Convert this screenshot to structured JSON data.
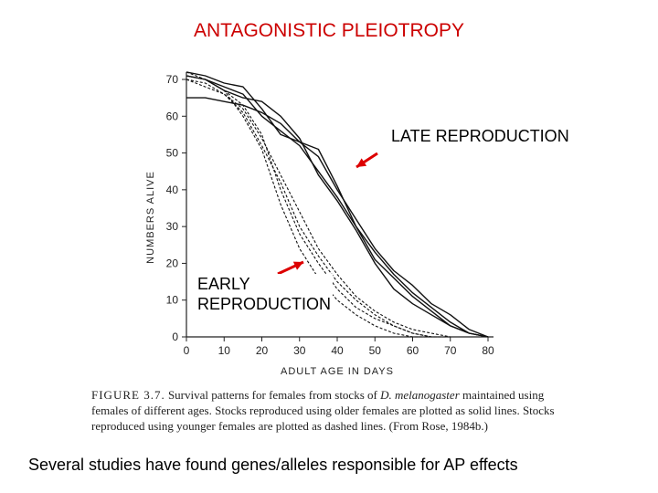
{
  "slide": {
    "title": "ANTAGONISTIC PLEIOTROPY",
    "late_label": "LATE REPRODUCTION",
    "early_label_line1": "EARLY",
    "early_label_line2": "REPRODUCTION",
    "footer": "Several studies have found genes/alleles responsible for AP effects",
    "arrow_color": "#dd0000",
    "title_color": "#cc0000"
  },
  "caption": {
    "figure_number": "FIGURE 3.7.",
    "text_before_species": "Survival patterns for females from stocks of",
    "species": "D. melanogaster",
    "text_after_species": "maintained using females of different ages. Stocks reproduced using older females are plotted as solid lines. Stocks reproduced using younger females are plotted as dashed lines. (From Rose, 1984b.)"
  },
  "chart_data": {
    "type": "line",
    "title": "",
    "xlabel": "ADULT AGE IN DAYS",
    "ylabel": "NUMBERS ALIVE",
    "xlim": [
      0,
      80
    ],
    "ylim": [
      0,
      70
    ],
    "x_ticks": [
      0,
      10,
      20,
      30,
      40,
      50,
      60,
      70,
      80
    ],
    "y_ticks": [
      0,
      10,
      20,
      30,
      40,
      50,
      60,
      70
    ],
    "grid": false,
    "series": [
      {
        "style": "solid",
        "x": [
          0,
          5,
          10,
          15,
          20,
          25,
          30,
          35,
          40,
          45,
          50,
          55,
          60,
          65,
          70,
          75,
          80
        ],
        "y": [
          72,
          71,
          69,
          68,
          62,
          55,
          53,
          49,
          40,
          32,
          24,
          18,
          14,
          9,
          6,
          2,
          0
        ]
      },
      {
        "style": "solid",
        "x": [
          0,
          5,
          10,
          15,
          20,
          25,
          30,
          35,
          40,
          45,
          50,
          55,
          60,
          65,
          70,
          75,
          80
        ],
        "y": [
          65,
          65,
          64,
          63,
          61,
          58,
          53,
          51,
          41,
          30,
          21,
          16,
          11,
          7,
          3,
          1,
          0
        ]
      },
      {
        "style": "solid",
        "x": [
          0,
          5,
          10,
          15,
          20,
          25,
          30,
          35,
          40,
          45,
          50,
          55,
          60,
          65,
          70,
          75,
          80
        ],
        "y": [
          71,
          70,
          68,
          66,
          60,
          56,
          52,
          45,
          38,
          30,
          23,
          17,
          12,
          8,
          4,
          1,
          0
        ]
      },
      {
        "style": "solid",
        "x": [
          0,
          5,
          10,
          15,
          20,
          25,
          30,
          35,
          40,
          45,
          50,
          55,
          60,
          65,
          70,
          75,
          80
        ],
        "y": [
          71,
          70,
          67,
          65,
          64,
          60,
          54,
          44,
          37,
          29,
          20,
          13,
          9,
          6,
          3,
          1,
          0
        ]
      },
      {
        "style": "dashed",
        "x": [
          0,
          5,
          10,
          15,
          20,
          25,
          30,
          35,
          40,
          45,
          50,
          55,
          60,
          65,
          70
        ],
        "y": [
          71,
          70,
          67,
          63,
          55,
          40,
          28,
          20,
          13,
          8,
          5,
          3,
          1,
          0,
          0
        ]
      },
      {
        "style": "dashed",
        "x": [
          0,
          5,
          10,
          15,
          20,
          25,
          30,
          35,
          40,
          45,
          50,
          55,
          60,
          65,
          70
        ],
        "y": [
          70,
          68,
          66,
          61,
          52,
          42,
          30,
          22,
          15,
          10,
          6,
          3,
          1,
          0,
          0
        ]
      },
      {
        "style": "dashed",
        "x": [
          0,
          5,
          10,
          15,
          20,
          25,
          30,
          35,
          40,
          45,
          50,
          55,
          60,
          65
        ],
        "y": [
          72,
          70,
          67,
          60,
          51,
          36,
          24,
          16,
          10,
          6,
          3,
          1,
          0,
          0
        ]
      },
      {
        "style": "dashed",
        "x": [
          0,
          5,
          10,
          15,
          20,
          25,
          30,
          35,
          40,
          45,
          50,
          55,
          60,
          65,
          70
        ],
        "y": [
          70,
          69,
          66,
          62,
          54,
          44,
          34,
          24,
          17,
          11,
          7,
          4,
          2,
          1,
          0
        ]
      }
    ]
  }
}
